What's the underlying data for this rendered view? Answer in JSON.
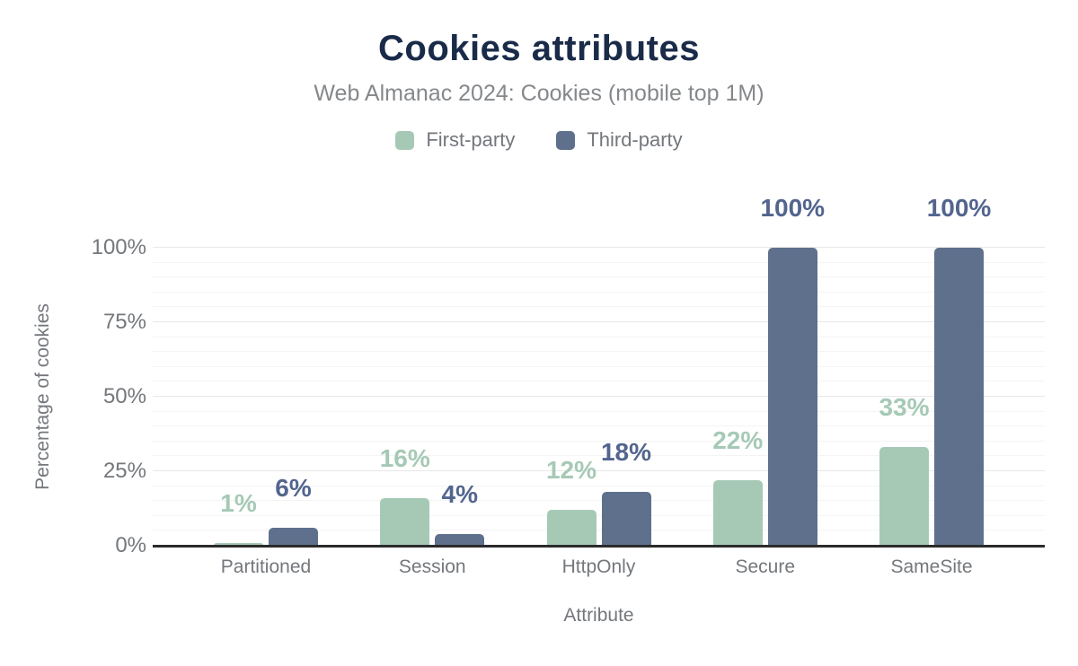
{
  "chart_data": {
    "type": "bar",
    "title": "Cookies attributes",
    "subtitle": "Web Almanac 2024: Cookies (mobile top 1M)",
    "xlabel": "Attribute",
    "ylabel": "Percentage of cookies",
    "ylim": [
      0,
      100
    ],
    "categories": [
      "Partitioned",
      "Session",
      "HttpOnly",
      "Secure",
      "SameSite"
    ],
    "series": [
      {
        "name": "First-party",
        "color": "#a6c9b6",
        "label_color": "#a6c9b6",
        "values": [
          1,
          16,
          12,
          22,
          33
        ],
        "labels": [
          "1%",
          "16%",
          "12%",
          "22%",
          "33%"
        ]
      },
      {
        "name": "Third-party",
        "color": "#5e708c",
        "label_color": "#53658e",
        "values": [
          6,
          4,
          18,
          100,
          100
        ],
        "labels": [
          "6%",
          "4%",
          "18%",
          "100%",
          "100%"
        ]
      }
    ],
    "yticks": [
      {
        "value": 0,
        "label": "0%"
      },
      {
        "value": 25,
        "label": "25%"
      },
      {
        "value": 50,
        "label": "50%"
      },
      {
        "value": 75,
        "label": "75%"
      },
      {
        "value": 100,
        "label": "100%"
      }
    ],
    "grid": {
      "minor_step": 5,
      "major_step": 25,
      "minor_color": "#f4f4f4",
      "major_color": "#e8e8e8"
    },
    "legend_position": "top",
    "colors": {
      "title": "#1a2b49",
      "text": "#74777c",
      "subtitle_text": "#85888b",
      "axis_line": "#2b2b2b"
    }
  }
}
